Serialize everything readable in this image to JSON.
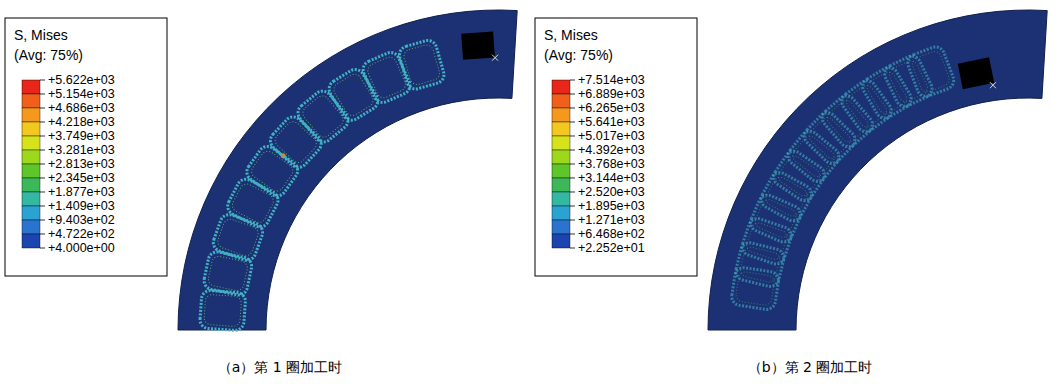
{
  "chart_data": [
    {
      "type": "contour",
      "title": "S, Mises",
      "subtitle": "(Avg: 75%)",
      "caption": "（a）第 1 圈加工时",
      "colorbar_lim": [
        4,
        5622
      ],
      "colorbar_ticks": [
        {
          "value": 5622,
          "label": "+5.622e+03"
        },
        {
          "value": 5154,
          "label": "+5.154e+03"
        },
        {
          "value": 4686,
          "label": "+4.686e+03"
        },
        {
          "value": 4218,
          "label": "+4.218e+03"
        },
        {
          "value": 3749,
          "label": "+3.749e+03"
        },
        {
          "value": 3281,
          "label": "+3.281e+03"
        },
        {
          "value": 2813,
          "label": "+2.813e+03"
        },
        {
          "value": 2345,
          "label": "+2.345e+03"
        },
        {
          "value": 1877,
          "label": "+1.877e+03"
        },
        {
          "value": 1409,
          "label": "+1.409e+03"
        },
        {
          "value": 940.3,
          "label": "+9.403e+02"
        },
        {
          "value": 472.2,
          "label": "+4.722e+02"
        },
        {
          "value": 4,
          "label": "+4.000e+00"
        }
      ],
      "colors": [
        "#e8261a",
        "#f0601a",
        "#f5981c",
        "#f2c81e",
        "#d6e21a",
        "#9ed81c",
        "#5fc62a",
        "#3cb85a",
        "#34b8a2",
        "#2aa2d2",
        "#2a74d0",
        "#1c44b0"
      ]
    },
    {
      "type": "contour",
      "title": "S, Mises",
      "subtitle": "(Avg: 75%)",
      "caption": "（b）第 2 圈加工时",
      "colorbar_lim": [
        22.52,
        7514
      ],
      "colorbar_ticks": [
        {
          "value": 7514,
          "label": "+7.514e+03"
        },
        {
          "value": 6889,
          "label": "+6.889e+03"
        },
        {
          "value": 6265,
          "label": "+6.265e+03"
        },
        {
          "value": 5641,
          "label": "+5.641e+03"
        },
        {
          "value": 5017,
          "label": "+5.017e+03"
        },
        {
          "value": 4392,
          "label": "+4.392e+03"
        },
        {
          "value": 3768,
          "label": "+3.768e+03"
        },
        {
          "value": 3144,
          "label": "+3.144e+03"
        },
        {
          "value": 2520,
          "label": "+2.520e+03"
        },
        {
          "value": 1895,
          "label": "+1.895e+03"
        },
        {
          "value": 1271,
          "label": "+1.271e+03"
        },
        {
          "value": 646.8,
          "label": "+6.468e+02"
        },
        {
          "value": 22.52,
          "label": "+2.252e+01"
        }
      ],
      "colors": [
        "#e8261a",
        "#f0601a",
        "#f5981c",
        "#f2c81e",
        "#d6e21a",
        "#9ed81c",
        "#5fc62a",
        "#3cb85a",
        "#34b8a2",
        "#2aa2d2",
        "#2a74d0",
        "#1c44b0"
      ]
    }
  ]
}
